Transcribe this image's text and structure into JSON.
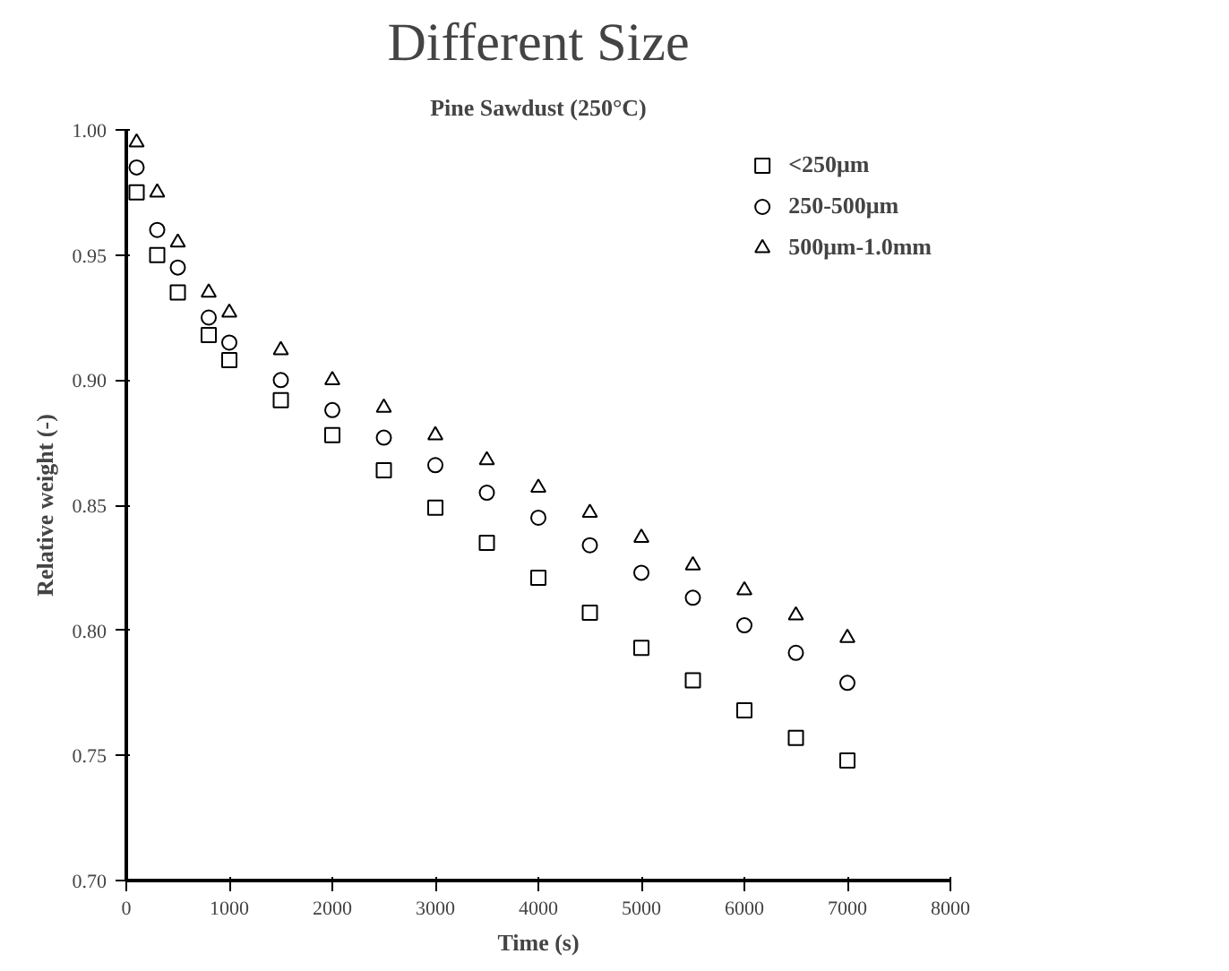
{
  "chart_data": {
    "type": "scatter",
    "title": "Different Size",
    "subtitle": "Pine Sawdust (250°C)",
    "xlabel": "Time (s)",
    "ylabel": "Relative weight (-)",
    "x": [
      100,
      300,
      500,
      800,
      1000,
      1500,
      2000,
      2500,
      3000,
      3500,
      4000,
      4500,
      5000,
      5500,
      6000,
      6500,
      7000
    ],
    "series": [
      {
        "name": "<250μm",
        "color": "#000000",
        "marker": "square",
        "values": [
          0.975,
          0.95,
          0.935,
          0.918,
          0.908,
          0.892,
          0.878,
          0.864,
          0.849,
          0.835,
          0.821,
          0.807,
          0.793,
          0.78,
          0.768,
          0.757,
          0.748
        ]
      },
      {
        "name": "250-500μm",
        "color": "#000000",
        "marker": "circle",
        "values": [
          0.985,
          0.96,
          0.945,
          0.925,
          0.915,
          0.9,
          0.888,
          0.877,
          0.866,
          0.855,
          0.845,
          0.834,
          0.823,
          0.813,
          0.802,
          0.791,
          0.779
        ]
      },
      {
        "name": "500μm-1.0mm",
        "color": "#000000",
        "marker": "triangle",
        "values": [
          0.995,
          0.975,
          0.955,
          0.935,
          0.927,
          0.912,
          0.9,
          0.889,
          0.878,
          0.868,
          0.857,
          0.847,
          0.837,
          0.826,
          0.816,
          0.806,
          0.797
        ]
      }
    ],
    "xlim": [
      0,
      8000
    ],
    "ylim": [
      0.7,
      1.0
    ],
    "xticks": [
      0,
      1000,
      2000,
      3000,
      4000,
      5000,
      6000,
      7000,
      8000
    ],
    "yticks": [
      {
        "value": 0.7,
        "label": "0.70"
      },
      {
        "value": 0.75,
        "label": "0.75"
      },
      {
        "value": 0.8,
        "label": "0.80"
      },
      {
        "value": 0.85,
        "label": "0.85"
      },
      {
        "value": 0.9,
        "label": "0.90"
      },
      {
        "value": 0.95,
        "label": "0.95"
      },
      {
        "value": 1.0,
        "label": "1.00"
      }
    ],
    "grid": false,
    "legend": "top right"
  }
}
